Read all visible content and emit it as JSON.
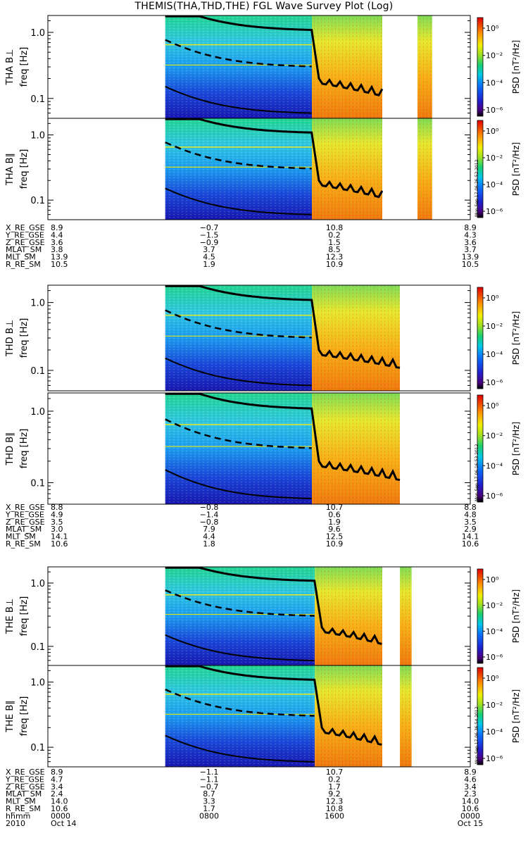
{
  "title": "THEMIS(THA,THD,THE) FGL Wave Survey Plot (Log)",
  "colorbar": {
    "label": "PSD [nT²/Hz]",
    "ticks": [
      "10⁰",
      "10⁻²",
      "10⁻⁴",
      "10⁻⁶"
    ],
    "stamp": "Mon Sep 17 06:26:52 2012",
    "stamps": [
      "Mon Sep 17 06:26:52 2012",
      "Mon Sep 17 06:16:53 2012",
      "Mon Sep 17 06:36:54 2012"
    ]
  },
  "chart_data": {
    "type": "heatmap",
    "title": "THEMIS(THA,THD,THE) FGL Wave Survey Plot (Log)",
    "y_scale": "log",
    "y_label": "freq [Hz]",
    "y_ticks": [
      "1.0",
      "0.1"
    ],
    "ylim": [
      0.05,
      1.8
    ],
    "x_range": [
      "2010 Oct 14 0000",
      "2010 Oct 15 0000"
    ],
    "x_ticks": [
      "0000",
      "0800",
      "1600",
      "0000"
    ],
    "x_date_labels": [
      "2010",
      "Oct 14",
      "",
      "Oct 15"
    ],
    "panels": [
      {
        "ylabel": "THA B⊥",
        "probe": "THA",
        "component": "perpendicular"
      },
      {
        "ylabel": "THA B∥",
        "probe": "THA",
        "component": "parallel"
      },
      {
        "ylabel": "THD B⊥",
        "probe": "THD",
        "component": "perpendicular"
      },
      {
        "ylabel": "THD B∥",
        "probe": "THD",
        "component": "parallel"
      },
      {
        "ylabel": "THE B⊥",
        "probe": "THE",
        "component": "perpendicular"
      },
      {
        "ylabel": "THE B∥",
        "probe": "THE",
        "component": "parallel"
      }
    ],
    "data_coverage": {
      "THA": [
        [
          "06:40",
          "15:00"
        ],
        [
          "15:00",
          "19:00"
        ],
        [
          "21:00",
          "21:50"
        ]
      ],
      "THD": [
        [
          "06:40",
          "15:00"
        ],
        [
          "15:00",
          "20:00"
        ]
      ],
      "THE": [
        [
          "06:40",
          "15:10"
        ],
        [
          "15:10",
          "19:00"
        ],
        [
          "20:00",
          "20:40"
        ]
      ]
    },
    "colorbar": {
      "label": "PSD [nT²/Hz]",
      "scale": "log",
      "range": [
        1e-07,
        10
      ]
    }
  },
  "ephemeris": [
    {
      "probe": "THA",
      "rows": [
        {
          "name": "X_RE_GSE",
          "values": [
            "8.9",
            "−0.7",
            "10.8",
            "8.9"
          ]
        },
        {
          "name": "Y_RE_GSE",
          "values": [
            "4.4",
            "−1.5",
            "0.2",
            "4.3"
          ]
        },
        {
          "name": "Z_RE_GSE",
          "values": [
            "3.6",
            "−0.9",
            "1.5",
            "3.6"
          ]
        },
        {
          "name": "MLAT_SM",
          "values": [
            "3.8",
            "3.7",
            "8.5",
            "3.7"
          ]
        },
        {
          "name": "MLT_SM",
          "values": [
            "13.9",
            "4.5",
            "12.3",
            "13.9"
          ]
        },
        {
          "name": "R_RE_SM",
          "values": [
            "10.5",
            "1.9",
            "10.9",
            "10.5"
          ]
        }
      ]
    },
    {
      "probe": "THD",
      "rows": [
        {
          "name": "X_RE_GSE",
          "values": [
            "8.8",
            "−0.8",
            "10.7",
            "8.8"
          ]
        },
        {
          "name": "Y_RE_GSE",
          "values": [
            "4.9",
            "−1.4",
            "0.6",
            "4.8"
          ]
        },
        {
          "name": "Z_RE_GSE",
          "values": [
            "3.5",
            "−0.8",
            "1.9",
            "3.5"
          ]
        },
        {
          "name": "MLAT_SM",
          "values": [
            "3.0",
            "7.9",
            "9.6",
            "2.9"
          ]
        },
        {
          "name": "MLT_SM",
          "values": [
            "14.1",
            "4.4",
            "12.5",
            "14.1"
          ]
        },
        {
          "name": "R_RE_SM",
          "values": [
            "10.6",
            "1.8",
            "10.9",
            "10.6"
          ]
        }
      ]
    },
    {
      "probe": "THE",
      "rows": [
        {
          "name": "X_RE_GSE",
          "values": [
            "8.9",
            "−1.1",
            "10.7",
            "8.9"
          ]
        },
        {
          "name": "Y_RE_GSE",
          "values": [
            "4.7",
            "−1.1",
            "0.2",
            "4.6"
          ]
        },
        {
          "name": "Z_RE_GSE",
          "values": [
            "3.4",
            "−0.7",
            "1.7",
            "3.4"
          ]
        },
        {
          "name": "MLAT_SM",
          "values": [
            "2.4",
            "8.7",
            "9.2",
            "2.3"
          ]
        },
        {
          "name": "MLT_SM",
          "values": [
            "14.0",
            "3.3",
            "12.3",
            "14.0"
          ]
        },
        {
          "name": "R_RE_SM",
          "values": [
            "10.6",
            "1.7",
            "10.8",
            "10.6"
          ]
        },
        {
          "name": "hhmm",
          "values": [
            "0000",
            "0800",
            "1600",
            "0000"
          ]
        },
        {
          "name": "2010",
          "values": [
            "Oct 14",
            "",
            "",
            "Oct 15"
          ]
        }
      ]
    }
  ]
}
